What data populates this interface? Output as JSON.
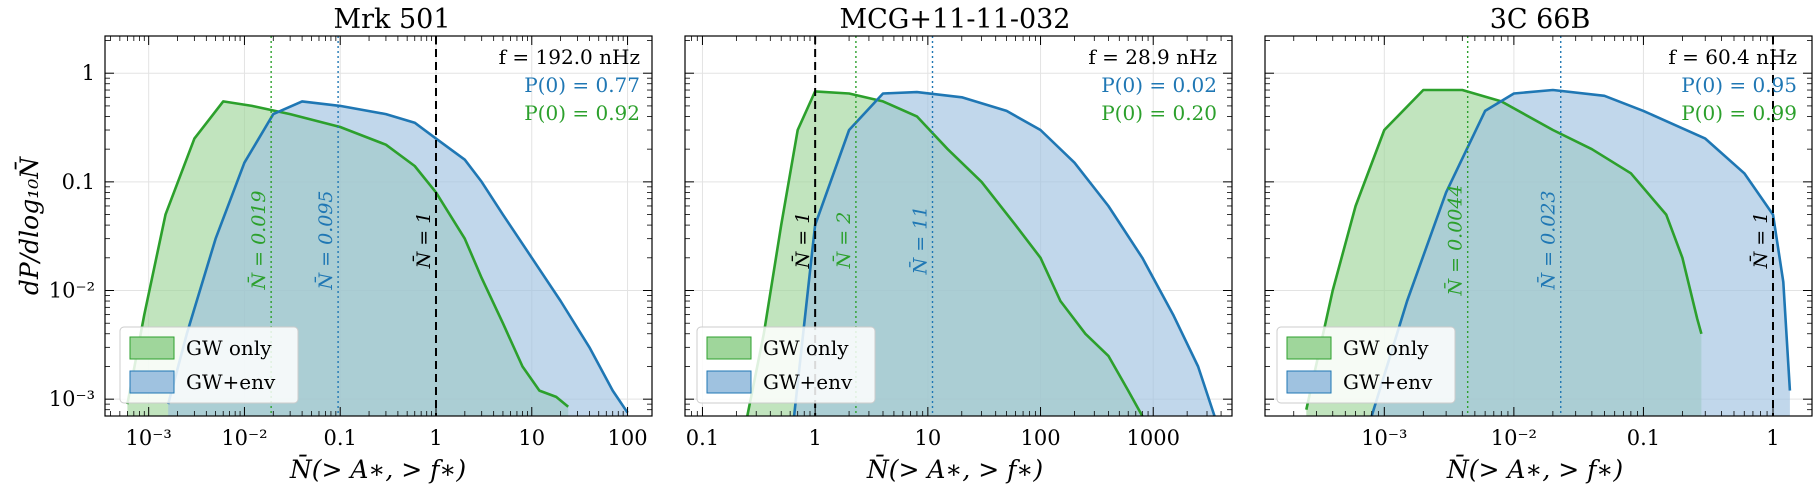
{
  "figure": {
    "ylabel": "dP/dlog₁₀N̄",
    "colors": {
      "gw_only": "#2ca02c",
      "gw_env": "#1f77b4",
      "gw_only_fill": "#9fd69b",
      "gw_env_fill": "#9fc2e0"
    }
  },
  "chart_data": [
    {
      "type": "area",
      "title": "Mrk 501",
      "xlabel": "N̄(> A∗, > f∗)",
      "ylabel": "dP/dlog₁₀N̄",
      "xscale": "log",
      "yscale": "log",
      "xlim": [
        0.00035,
        180
      ],
      "ylim": [
        0.0007,
        2.2
      ],
      "xticks": [
        0.001,
        0.01,
        0.1,
        1,
        10,
        100
      ],
      "xtick_labels": [
        "10⁻³",
        "10⁻²",
        "0.1",
        "1",
        "10",
        "100"
      ],
      "yticks": [
        0.001,
        0.01,
        0.1,
        1
      ],
      "ytick_labels": [
        "10⁻³",
        "10⁻²",
        "0.1",
        "1"
      ],
      "grid": true,
      "legend": {
        "position": "lower-left",
        "entries": [
          "GW only",
          "GW+env"
        ]
      },
      "annotations": {
        "freq": "f = 192.0 nHz",
        "p_env": "P(0) = 0.77",
        "p_gw": "P(0) = 0.92"
      },
      "vlines": [
        {
          "x": 0.019,
          "label": "N̄ = 0.019",
          "style": "dotted",
          "series": "GW only"
        },
        {
          "x": 0.095,
          "label": "N̄ = 0.095",
          "style": "dotted",
          "series": "GW+env"
        },
        {
          "x": 1,
          "label": "N̄ = 1",
          "style": "dashed",
          "series": "reference"
        }
      ],
      "series": [
        {
          "name": "GW only",
          "points": [
            [
              0.0006,
              0.0009
            ],
            [
              0.0009,
              0.006
            ],
            [
              0.0015,
              0.05
            ],
            [
              0.003,
              0.25
            ],
            [
              0.006,
              0.55
            ],
            [
              0.012,
              0.5
            ],
            [
              0.03,
              0.42
            ],
            [
              0.1,
              0.32
            ],
            [
              0.3,
              0.22
            ],
            [
              0.6,
              0.14
            ],
            [
              1,
              0.08
            ],
            [
              2,
              0.03
            ],
            [
              3,
              0.013
            ],
            [
              5,
              0.005
            ],
            [
              8,
              0.002
            ],
            [
              12,
              0.0012
            ],
            [
              18,
              0.00105
            ],
            [
              24,
              0.00085
            ]
          ]
        },
        {
          "name": "GW+env",
          "points": [
            [
              0.0016,
              0.0009
            ],
            [
              0.0025,
              0.004
            ],
            [
              0.005,
              0.03
            ],
            [
              0.01,
              0.15
            ],
            [
              0.02,
              0.42
            ],
            [
              0.04,
              0.55
            ],
            [
              0.1,
              0.5
            ],
            [
              0.3,
              0.42
            ],
            [
              0.6,
              0.35
            ],
            [
              1,
              0.25
            ],
            [
              2,
              0.16
            ],
            [
              3,
              0.1
            ],
            [
              5,
              0.05
            ],
            [
              10,
              0.02
            ],
            [
              20,
              0.008
            ],
            [
              40,
              0.003
            ],
            [
              70,
              0.0012
            ],
            [
              100,
              0.00075
            ]
          ]
        }
      ]
    },
    {
      "type": "area",
      "title": "MCG+11-11-032",
      "xlabel": "N̄(> A∗, > f∗)",
      "xscale": "log",
      "yscale": "log",
      "xlim": [
        0.07,
        5000
      ],
      "ylim": [
        0.0007,
        2.2
      ],
      "xticks": [
        0.1,
        1,
        10,
        100,
        1000
      ],
      "xtick_labels": [
        "0.1",
        "1",
        "10",
        "100",
        "1000"
      ],
      "grid": true,
      "legend": {
        "position": "lower-left",
        "entries": [
          "GW only",
          "GW+env"
        ]
      },
      "annotations": {
        "freq": "f = 28.9 nHz",
        "p_env": "P(0) = 0.02",
        "p_gw": "P(0) = 0.20"
      },
      "vlines": [
        {
          "x": 1,
          "label": "N̄ = 1",
          "style": "dashed",
          "series": "reference"
        },
        {
          "x": 2.3,
          "label": "N̄ = 2",
          "style": "dotted",
          "series": "GW only"
        },
        {
          "x": 11,
          "label": "N̄ = 11",
          "style": "dotted",
          "series": "GW+env"
        }
      ],
      "series": [
        {
          "name": "GW only",
          "points": [
            [
              0.25,
              0.0007
            ],
            [
              0.35,
              0.004
            ],
            [
              0.5,
              0.04
            ],
            [
              0.7,
              0.3
            ],
            [
              1,
              0.68
            ],
            [
              2,
              0.65
            ],
            [
              4,
              0.55
            ],
            [
              8,
              0.4
            ],
            [
              15,
              0.2
            ],
            [
              30,
              0.1
            ],
            [
              60,
              0.04
            ],
            [
              100,
              0.02
            ],
            [
              150,
              0.008
            ],
            [
              250,
              0.004
            ],
            [
              400,
              0.0025
            ],
            [
              600,
              0.0012
            ],
            [
              800,
              0.0007
            ]
          ]
        },
        {
          "name": "GW+env",
          "points": [
            [
              0.65,
              0.0007
            ],
            [
              1,
              0.04
            ],
            [
              2,
              0.3
            ],
            [
              4,
              0.65
            ],
            [
              8,
              0.67
            ],
            [
              20,
              0.6
            ],
            [
              50,
              0.45
            ],
            [
              100,
              0.3
            ],
            [
              200,
              0.15
            ],
            [
              400,
              0.06
            ],
            [
              800,
              0.02
            ],
            [
              1500,
              0.006
            ],
            [
              2500,
              0.002
            ],
            [
              3500,
              0.0007
            ]
          ]
        }
      ]
    },
    {
      "type": "area",
      "title": "3C 66B",
      "xlabel": "N̄(> A∗, > f∗)",
      "xscale": "log",
      "yscale": "log",
      "xlim": [
        0.00012,
        2
      ],
      "ylim": [
        0.0007,
        2.2
      ],
      "xticks": [
        0.001,
        0.01,
        0.1,
        1
      ],
      "xtick_labels": [
        "10⁻³",
        "10⁻²",
        "0.1",
        "1"
      ],
      "grid": true,
      "legend": {
        "position": "lower-left",
        "entries": [
          "GW only",
          "GW+env"
        ]
      },
      "annotations": {
        "freq": "f = 60.4 nHz",
        "p_env": "P(0) = 0.95",
        "p_gw": "P(0) = 0.99"
      },
      "vlines": [
        {
          "x": 0.0044,
          "label": "N̄ = 0.0044",
          "style": "dotted",
          "series": "GW only"
        },
        {
          "x": 0.023,
          "label": "N̄ = 0.023",
          "style": "dotted",
          "series": "GW+env"
        },
        {
          "x": 1,
          "label": "N̄ = 1",
          "style": "dashed",
          "series": "reference"
        }
      ],
      "series": [
        {
          "name": "GW only",
          "points": [
            [
              0.00025,
              0.0008
            ],
            [
              0.0004,
              0.01
            ],
            [
              0.0006,
              0.06
            ],
            [
              0.001,
              0.3
            ],
            [
              0.002,
              0.7
            ],
            [
              0.004,
              0.7
            ],
            [
              0.008,
              0.55
            ],
            [
              0.02,
              0.3
            ],
            [
              0.04,
              0.2
            ],
            [
              0.08,
              0.12
            ],
            [
              0.15,
              0.05
            ],
            [
              0.2,
              0.02
            ],
            [
              0.26,
              0.0055
            ],
            [
              0.28,
              0.004
            ]
          ]
        },
        {
          "name": "GW+env",
          "points": [
            [
              0.0008,
              0.0007
            ],
            [
              0.0015,
              0.008
            ],
            [
              0.003,
              0.08
            ],
            [
              0.006,
              0.45
            ],
            [
              0.01,
              0.65
            ],
            [
              0.02,
              0.7
            ],
            [
              0.05,
              0.62
            ],
            [
              0.1,
              0.45
            ],
            [
              0.3,
              0.25
            ],
            [
              0.6,
              0.12
            ],
            [
              1,
              0.05
            ],
            [
              1.2,
              0.012
            ],
            [
              1.35,
              0.0012
            ]
          ]
        }
      ]
    }
  ]
}
